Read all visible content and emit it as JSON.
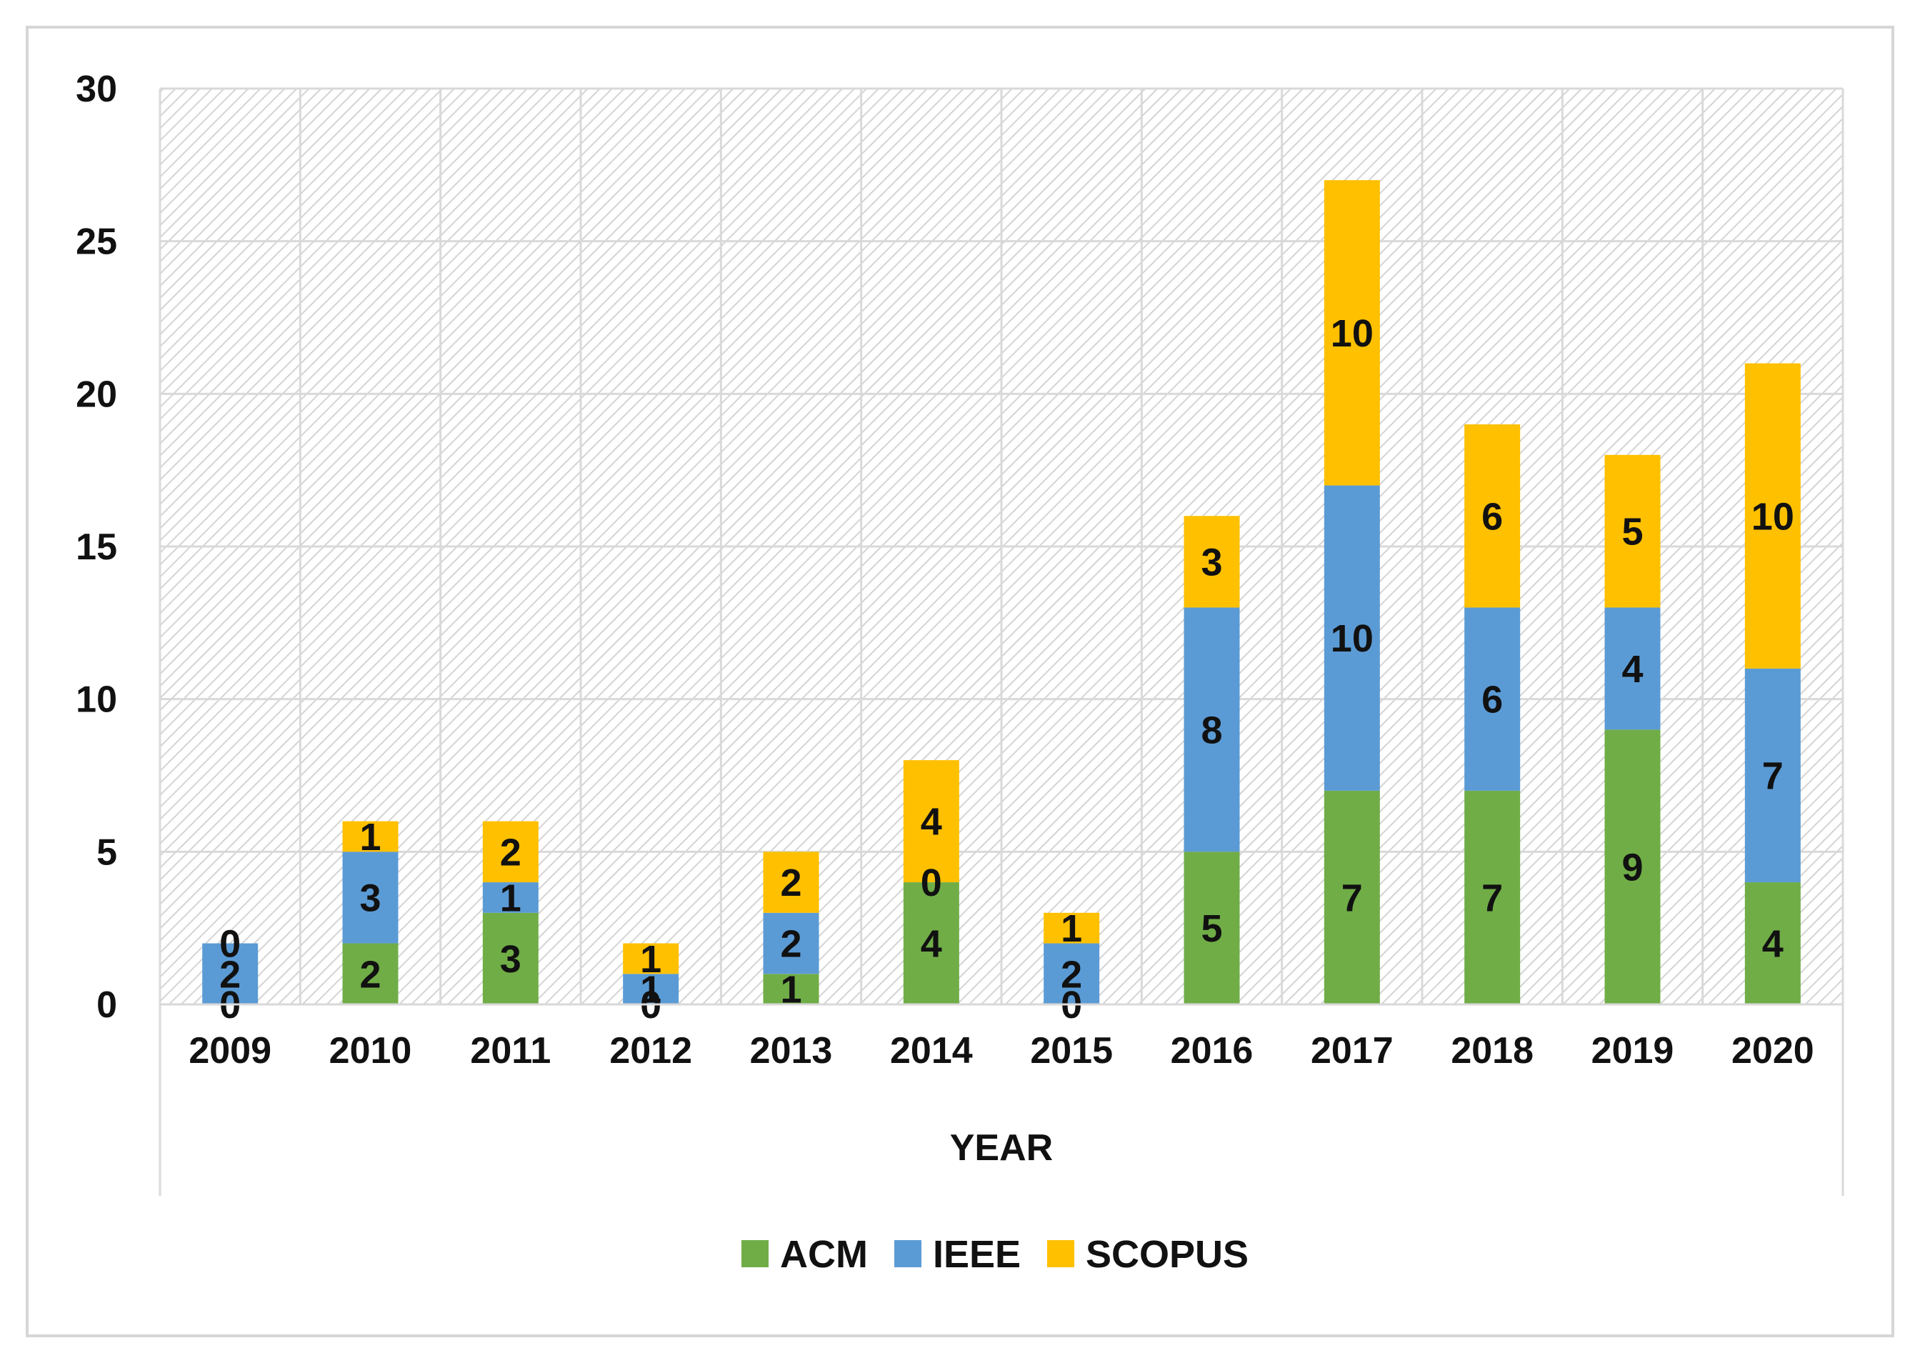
{
  "chart_data": {
    "type": "bar",
    "stacked": true,
    "title": "",
    "xlabel": "YEAR",
    "ylabel": "",
    "ylim": [
      0,
      30
    ],
    "yticks": [
      0,
      5,
      10,
      15,
      20,
      25,
      30
    ],
    "grid": true,
    "legend_position": "bottom",
    "categories": [
      "2009",
      "2010",
      "2011",
      "2012",
      "2013",
      "2014",
      "2015",
      "2016",
      "2017",
      "2018",
      "2019",
      "2020"
    ],
    "series": [
      {
        "name": "ACM",
        "color": "#70ad47",
        "values": [
          0,
          2,
          3,
          0,
          1,
          4,
          0,
          5,
          7,
          7,
          9,
          4
        ]
      },
      {
        "name": "IEEE",
        "color": "#5b9bd5",
        "values": [
          2,
          3,
          1,
          1,
          2,
          0,
          2,
          8,
          10,
          6,
          4,
          7
        ]
      },
      {
        "name": "SCOPUS",
        "color": "#ffc000",
        "values": [
          0,
          1,
          2,
          1,
          2,
          4,
          1,
          3,
          10,
          6,
          5,
          10
        ]
      }
    ]
  }
}
